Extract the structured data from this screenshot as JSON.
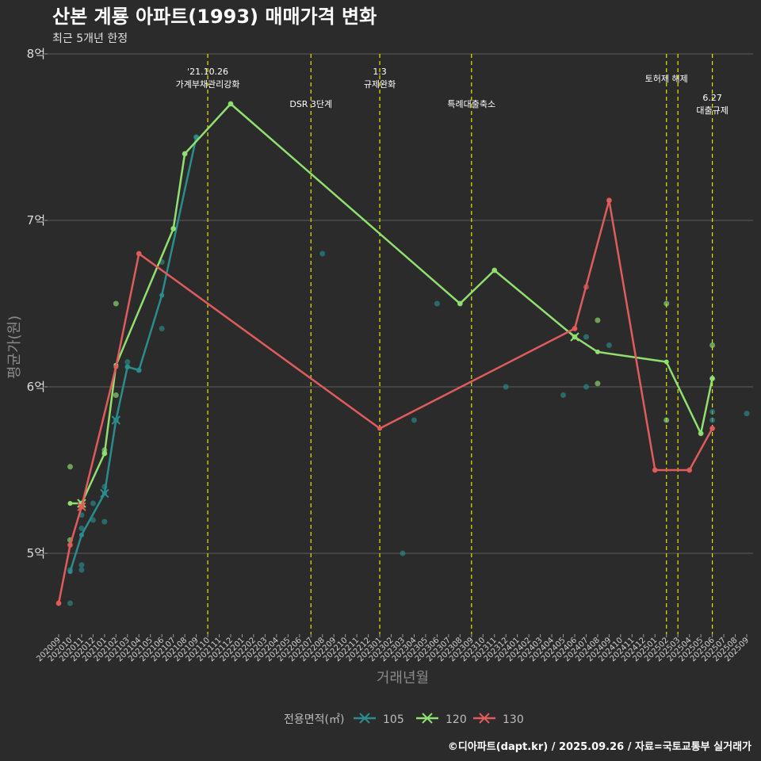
{
  "chart_data": {
    "type": "line",
    "title": "산본 계룡 아파트(1993) 매매가격 변화",
    "subtitle": "최근 5개년 한정",
    "xlabel": "거래년월",
    "ylabel": "평균가(원)",
    "caption": "©디아파트(dapt.kr) / 2025.09.26 / 자료=국토교통부 실거래가",
    "ylim": [
      4.55,
      8.05
    ],
    "yticks": [
      5,
      6,
      7,
      8
    ],
    "ytick_labels": [
      "5억",
      "6억",
      "7억",
      "8억"
    ],
    "categories": [
      "202009",
      "202010",
      "202011",
      "202012",
      "202101",
      "202102",
      "202103",
      "202104",
      "202105",
      "202106",
      "202107",
      "202108",
      "202109",
      "202110",
      "202111",
      "202112",
      "202201",
      "202202",
      "202203",
      "202204",
      "202205",
      "202206",
      "202207",
      "202208",
      "202209",
      "202210",
      "202211",
      "202212",
      "202301",
      "202302",
      "202303",
      "202304",
      "202305",
      "202306",
      "202307",
      "202308",
      "202309",
      "202310",
      "202311",
      "202312",
      "202401",
      "202402",
      "202403",
      "202404",
      "202405",
      "202406",
      "202407",
      "202408",
      "202409",
      "202410",
      "202411",
      "202412",
      "202501",
      "202502",
      "202503",
      "202504",
      "202505",
      "202506",
      "202507",
      "202508",
      "202509"
    ],
    "legend_title": "전용면적(㎡)",
    "series": [
      {
        "name": "105",
        "color": "#2a8c8c",
        "line": [
          [
            "202010",
            4.89
          ],
          [
            "202011",
            5.11
          ],
          [
            "202101",
            5.36
          ],
          [
            "202102",
            5.8
          ],
          [
            "202103",
            6.12
          ],
          [
            "202104",
            6.1
          ],
          [
            "202106",
            6.55
          ],
          [
            "202109",
            7.5
          ]
        ],
        "points": [
          [
            "202010",
            4.7
          ],
          [
            "202010",
            4.9
          ],
          [
            "202011",
            4.9
          ],
          [
            "202011",
            4.93
          ],
          [
            "202011",
            5.15
          ],
          [
            "202011",
            5.23
          ],
          [
            "202012",
            5.2
          ],
          [
            "202012",
            5.3
          ],
          [
            "202101",
            5.19
          ],
          [
            "202101",
            5.4
          ],
          [
            "202102",
            5.8
          ],
          [
            "202103",
            6.15
          ],
          [
            "202103",
            6.12
          ],
          [
            "202104",
            6.1
          ],
          [
            "202106",
            6.35
          ],
          [
            "202106",
            6.75
          ],
          [
            "202109",
            7.5
          ],
          [
            "202208",
            6.8
          ],
          [
            "202303",
            5.0
          ],
          [
            "202304",
            5.8
          ],
          [
            "202306",
            6.5
          ],
          [
            "202312",
            6.0
          ],
          [
            "202405",
            5.95
          ],
          [
            "202407",
            6.3
          ],
          [
            "202407",
            6.0
          ],
          [
            "202409",
            6.25
          ],
          [
            "202506",
            5.85
          ],
          [
            "202506",
            5.8
          ],
          [
            "202509",
            5.84
          ]
        ],
        "markers": [
          [
            "202102",
            5.8
          ],
          [
            "202101",
            5.36
          ]
        ]
      },
      {
        "name": "120",
        "color": "#90e070",
        "line": [
          [
            "202010",
            5.3
          ],
          [
            "202011",
            5.3
          ],
          [
            "202101",
            5.6
          ],
          [
            "202102",
            6.13
          ],
          [
            "202107",
            6.95
          ],
          [
            "202108",
            7.4
          ],
          [
            "202112",
            7.7
          ],
          [
            "202308",
            6.5
          ],
          [
            "202311",
            6.7
          ],
          [
            "202406",
            6.3
          ],
          [
            "202408",
            6.21
          ],
          [
            "202502",
            6.15
          ],
          [
            "202505",
            5.72
          ],
          [
            "202506",
            6.05
          ]
        ],
        "points": [
          [
            "202010",
            5.52
          ],
          [
            "202010",
            5.08
          ],
          [
            "202011",
            5.3
          ],
          [
            "202101",
            5.6
          ],
          [
            "202101",
            5.62
          ],
          [
            "202102",
            6.5
          ],
          [
            "202102",
            5.95
          ],
          [
            "202107",
            6.95
          ],
          [
            "202108",
            7.4
          ],
          [
            "202112",
            7.7
          ],
          [
            "202308",
            6.5
          ],
          [
            "202311",
            6.7
          ],
          [
            "202406",
            6.3
          ],
          [
            "202408",
            6.4
          ],
          [
            "202408",
            6.02
          ],
          [
            "202502",
            6.5
          ],
          [
            "202502",
            5.8
          ],
          [
            "202505",
            5.72
          ],
          [
            "202506",
            6.25
          ],
          [
            "202506",
            6.05
          ]
        ],
        "markers": [
          [
            "202011",
            5.3
          ],
          [
            "202406",
            6.3
          ]
        ]
      },
      {
        "name": "130",
        "color": "#e05c5c",
        "line": [
          [
            "202009",
            4.7
          ],
          [
            "202010",
            5.05
          ],
          [
            "202011",
            5.28
          ],
          [
            "202102",
            6.12
          ],
          [
            "202104",
            6.8
          ],
          [
            "202301",
            5.75
          ],
          [
            "202406",
            6.35
          ],
          [
            "202409",
            7.12
          ],
          [
            "202501",
            5.5
          ],
          [
            "202504",
            5.5
          ],
          [
            "202506",
            5.75
          ]
        ],
        "points": [
          [
            "202009",
            4.7
          ],
          [
            "202010",
            5.05
          ],
          [
            "202011",
            5.28
          ],
          [
            "202104",
            6.8
          ],
          [
            "202406",
            6.35
          ],
          [
            "202407",
            6.6
          ],
          [
            "202409",
            7.12
          ],
          [
            "202501",
            5.5
          ],
          [
            "202504",
            5.5
          ],
          [
            "202506",
            5.75
          ]
        ],
        "markers": [
          [
            "202011",
            5.28
          ]
        ]
      }
    ],
    "annotations": [
      {
        "month": "202110",
        "label1": "'21.10.26",
        "label2": "가계부채관리강화",
        "level": 0
      },
      {
        "month": "202207",
        "label1": "DSR 3단계",
        "label2": "",
        "level": 1
      },
      {
        "month": "202301",
        "label1": "1.3",
        "label2": "규제완화",
        "level": 0
      },
      {
        "month": "202309",
        "label1": "특례대출축소",
        "label2": "",
        "level": 1
      },
      {
        "month": "202502",
        "label1": "토허제 해제",
        "label2": "",
        "level": 0
      },
      {
        "month": "202503",
        "label1": "",
        "label2": "",
        "level": 0
      },
      {
        "month": "202506",
        "label1": "6.27",
        "label2": "대출규제",
        "level": 2
      }
    ]
  }
}
